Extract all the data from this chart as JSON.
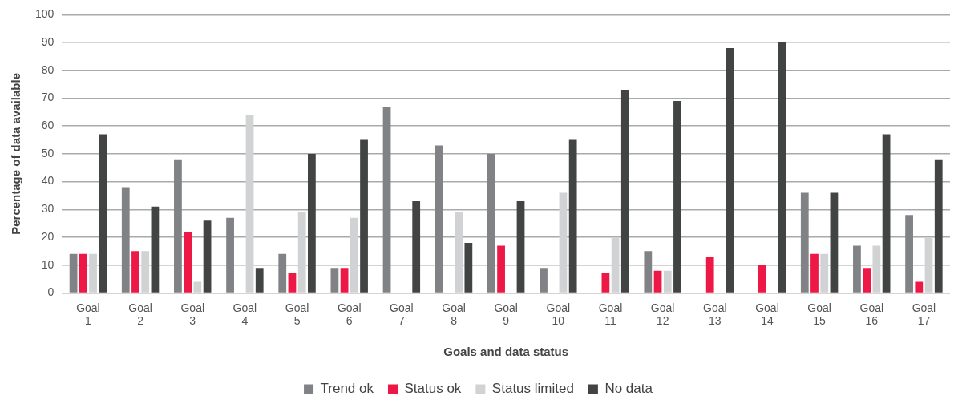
{
  "chart_data": {
    "type": "bar",
    "xlabel": "Goals and data status",
    "ylabel": "Percentage of data available",
    "categories": [
      "Goal 1",
      "Goal 2",
      "Goal 3",
      "Goal 4",
      "Goal 5",
      "Goal 6",
      "Goal 7",
      "Goal 8",
      "Goal 9",
      "Goal 10",
      "Goal 11",
      "Goal 12",
      "Goal 13",
      "Goal 14",
      "Goal 15",
      "Goal 16",
      "Goal 17"
    ],
    "series": [
      {
        "name": "Trend ok",
        "color": "#818285",
        "values": [
          14,
          38,
          48,
          27,
          14,
          9,
          67,
          53,
          50,
          9,
          0,
          15,
          0,
          0,
          36,
          17,
          28
        ]
      },
      {
        "name": "Status ok",
        "color": "#ed1846",
        "values": [
          14,
          15,
          22,
          0,
          7,
          9,
          0,
          0,
          17,
          0,
          7,
          8,
          13,
          10,
          14,
          9,
          4
        ]
      },
      {
        "name": "Status limited",
        "color": "#d1d2d4",
        "values": [
          14,
          15,
          4,
          64,
          29,
          27,
          0,
          29,
          0,
          36,
          20,
          8,
          0,
          0,
          14,
          17,
          20
        ]
      },
      {
        "name": "No data",
        "color": "#424443",
        "values": [
          57,
          31,
          26,
          9,
          50,
          55,
          33,
          18,
          33,
          55,
          73,
          69,
          88,
          90,
          36,
          57,
          48
        ]
      }
    ],
    "ylim": [
      0,
      100
    ],
    "yticks": [
      0,
      10,
      20,
      30,
      40,
      50,
      60,
      70,
      80,
      90,
      100
    ],
    "grid": "y",
    "legend": "bottom"
  }
}
